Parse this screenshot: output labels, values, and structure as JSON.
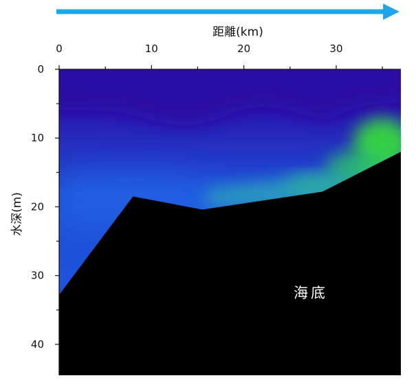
{
  "chart_data": {
    "type": "heatmap",
    "title": "",
    "xlabel": "距離(km)",
    "ylabel": "水深(m)",
    "xlim": [
      0,
      37
    ],
    "ylim": [
      0,
      44.5
    ],
    "x_ticks": [
      0,
      10,
      20,
      30
    ],
    "y_ticks": [
      0,
      10,
      20,
      30,
      40
    ],
    "x_axis_position": "top",
    "y_axis_inverted": true,
    "direction_arrow": "left-to-right",
    "seafloor": {
      "label": "海底",
      "profile": [
        {
          "x": 0,
          "depth": 32.8
        },
        {
          "x": 8,
          "depth": 18.5
        },
        {
          "x": 15.5,
          "depth": 20.4
        },
        {
          "x": 28.5,
          "depth": 17.8
        },
        {
          "x": 37,
          "depth": 12.0
        }
      ]
    },
    "colors": {
      "arrow": "#1ea6e6",
      "seafloor": "#000000",
      "colormap_low": "#2b0ea8",
      "colormap_mid": "#1f55e0",
      "colormap_high": "#3de83a"
    }
  }
}
